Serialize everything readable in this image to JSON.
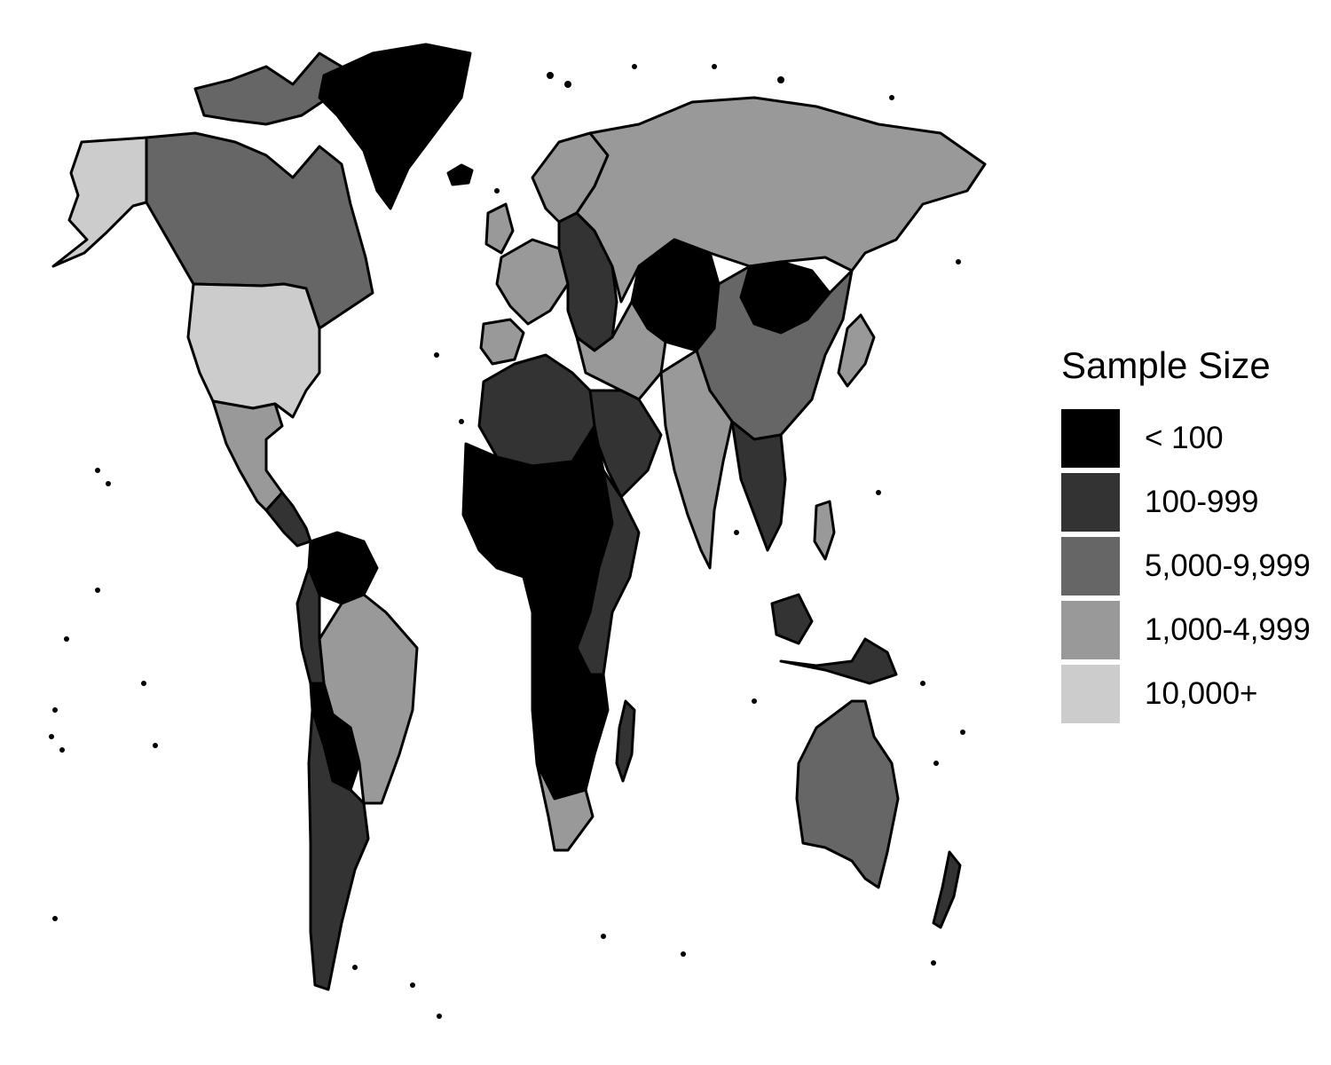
{
  "legend": {
    "title": "Sample Size",
    "items": [
      {
        "key": "lt100",
        "label": "< 100",
        "color": "#000000"
      },
      {
        "key": "r100_999",
        "label": "100-999",
        "color": "#333333"
      },
      {
        "key": "r5000_9999",
        "label": "5,000-9,999",
        "color": "#666666"
      },
      {
        "key": "r1000_4999",
        "label": "1,000-4,999",
        "color": "#999999"
      },
      {
        "key": "r10000p",
        "label": "10,000+",
        "color": "#cccccc"
      }
    ]
  },
  "regions": [
    {
      "name": "greenland",
      "category": "lt100"
    },
    {
      "name": "alaska",
      "category": "r10000p"
    },
    {
      "name": "canada",
      "category": "r5000_9999"
    },
    {
      "name": "united-states",
      "category": "r10000p"
    },
    {
      "name": "mexico",
      "category": "r1000_4999"
    },
    {
      "name": "central-america",
      "category": "r100_999"
    },
    {
      "name": "northern-south-america",
      "category": "lt100"
    },
    {
      "name": "brazil",
      "category": "r1000_4999"
    },
    {
      "name": "western-south-america",
      "category": "r100_999"
    },
    {
      "name": "bolivia-paraguay",
      "category": "lt100"
    },
    {
      "name": "southern-cone",
      "category": "r100_999"
    },
    {
      "name": "western-europe",
      "category": "r1000_4999"
    },
    {
      "name": "iberia",
      "category": "r1000_4999"
    },
    {
      "name": "scandinavia",
      "category": "r1000_4999"
    },
    {
      "name": "eastern-europe",
      "category": "r100_999"
    },
    {
      "name": "russia",
      "category": "r1000_4999"
    },
    {
      "name": "central-asia",
      "category": "lt100"
    },
    {
      "name": "mongolia",
      "category": "lt100"
    },
    {
      "name": "china",
      "category": "r5000_9999"
    },
    {
      "name": "middle-east",
      "category": "r1000_4999"
    },
    {
      "name": "arabia",
      "category": "r100_999"
    },
    {
      "name": "india",
      "category": "r1000_4999"
    },
    {
      "name": "southeast-asia",
      "category": "r100_999"
    },
    {
      "name": "north-africa",
      "category": "r100_999"
    },
    {
      "name": "sahel-central-africa",
      "category": "lt100"
    },
    {
      "name": "east-africa",
      "category": "r100_999"
    },
    {
      "name": "southern-africa",
      "category": "lt100"
    },
    {
      "name": "south-africa",
      "category": "r1000_4999"
    },
    {
      "name": "madagascar",
      "category": "r100_999"
    },
    {
      "name": "japan",
      "category": "r1000_4999"
    },
    {
      "name": "philippines",
      "category": "r1000_4999"
    },
    {
      "name": "indonesia",
      "category": "r100_999"
    },
    {
      "name": "australia",
      "category": "r5000_9999"
    },
    {
      "name": "new-zealand",
      "category": "r100_999"
    }
  ]
}
